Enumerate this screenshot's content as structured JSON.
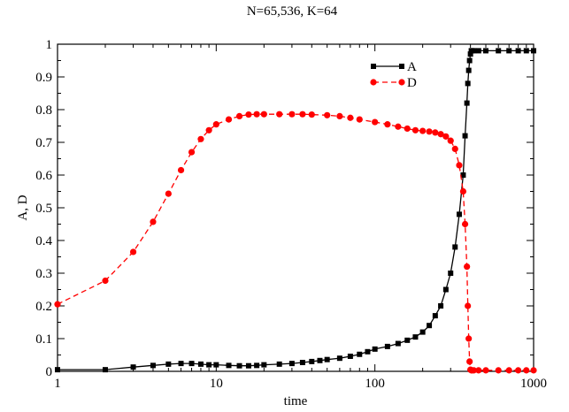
{
  "chart_data": {
    "type": "line",
    "title": "N=65,536, K=64",
    "xlabel": "time",
    "ylabel": "A, D",
    "xscale": "log",
    "xlim": [
      1,
      1000
    ],
    "ylim": [
      0,
      1
    ],
    "x_ticks": [
      1,
      10,
      100,
      1000
    ],
    "x_tick_labels": [
      "1",
      "10",
      "100",
      "1000"
    ],
    "y_ticks": [
      0,
      0.1,
      0.2,
      0.3,
      0.4,
      0.5,
      0.6,
      0.7,
      0.8,
      0.9,
      1
    ],
    "y_tick_labels": [
      "0",
      "0.1",
      "0.2",
      "0.3",
      "0.4",
      "0.5",
      "0.6",
      "0.7",
      "0.8",
      "0.9",
      "1"
    ],
    "grid": false,
    "legend_position": "top-right",
    "series": [
      {
        "name": "A",
        "color": "#000000",
        "marker": "square",
        "line_style": "solid",
        "x": [
          1,
          2,
          3,
          4,
          5,
          6,
          7,
          8,
          9,
          10,
          12,
          14,
          16,
          18,
          20,
          25,
          30,
          35,
          40,
          45,
          50,
          60,
          70,
          80,
          90,
          100,
          120,
          140,
          160,
          180,
          200,
          220,
          240,
          260,
          280,
          300,
          320,
          340,
          360,
          370,
          380,
          385,
          390,
          395,
          400,
          405,
          410,
          420,
          450,
          500,
          600,
          700,
          800,
          900,
          1000
        ],
        "y": [
          0.005,
          0.005,
          0.013,
          0.018,
          0.022,
          0.024,
          0.024,
          0.022,
          0.02,
          0.02,
          0.018,
          0.017,
          0.017,
          0.018,
          0.02,
          0.022,
          0.024,
          0.027,
          0.03,
          0.033,
          0.036,
          0.04,
          0.046,
          0.052,
          0.06,
          0.068,
          0.076,
          0.085,
          0.095,
          0.105,
          0.12,
          0.14,
          0.17,
          0.2,
          0.25,
          0.3,
          0.38,
          0.48,
          0.6,
          0.72,
          0.82,
          0.88,
          0.92,
          0.95,
          0.97,
          0.98,
          0.98,
          0.98,
          0.98,
          0.98,
          0.98,
          0.98,
          0.98,
          0.98,
          0.98
        ]
      },
      {
        "name": "D",
        "color": "#ff0000",
        "marker": "circle",
        "line_style": "dashed",
        "x": [
          1,
          2,
          3,
          4,
          5,
          6,
          7,
          8,
          9,
          10,
          12,
          14,
          16,
          18,
          20,
          25,
          30,
          35,
          40,
          50,
          60,
          70,
          80,
          100,
          120,
          140,
          160,
          180,
          200,
          220,
          240,
          260,
          280,
          300,
          320,
          340,
          360,
          370,
          380,
          385,
          390,
          395,
          400,
          405,
          410,
          420,
          450,
          500,
          600,
          700,
          800,
          900,
          1000
        ],
        "y": [
          0.205,
          0.277,
          0.365,
          0.457,
          0.543,
          0.615,
          0.67,
          0.71,
          0.737,
          0.755,
          0.77,
          0.78,
          0.785,
          0.786,
          0.786,
          0.786,
          0.786,
          0.786,
          0.785,
          0.783,
          0.78,
          0.775,
          0.77,
          0.762,
          0.755,
          0.748,
          0.742,
          0.737,
          0.735,
          0.733,
          0.73,
          0.725,
          0.718,
          0.705,
          0.68,
          0.63,
          0.55,
          0.45,
          0.32,
          0.2,
          0.1,
          0.03,
          0.005,
          0.003,
          0.003,
          0.003,
          0.003,
          0.003,
          0.003,
          0.003,
          0.003,
          0.003,
          0.003
        ]
      }
    ]
  }
}
